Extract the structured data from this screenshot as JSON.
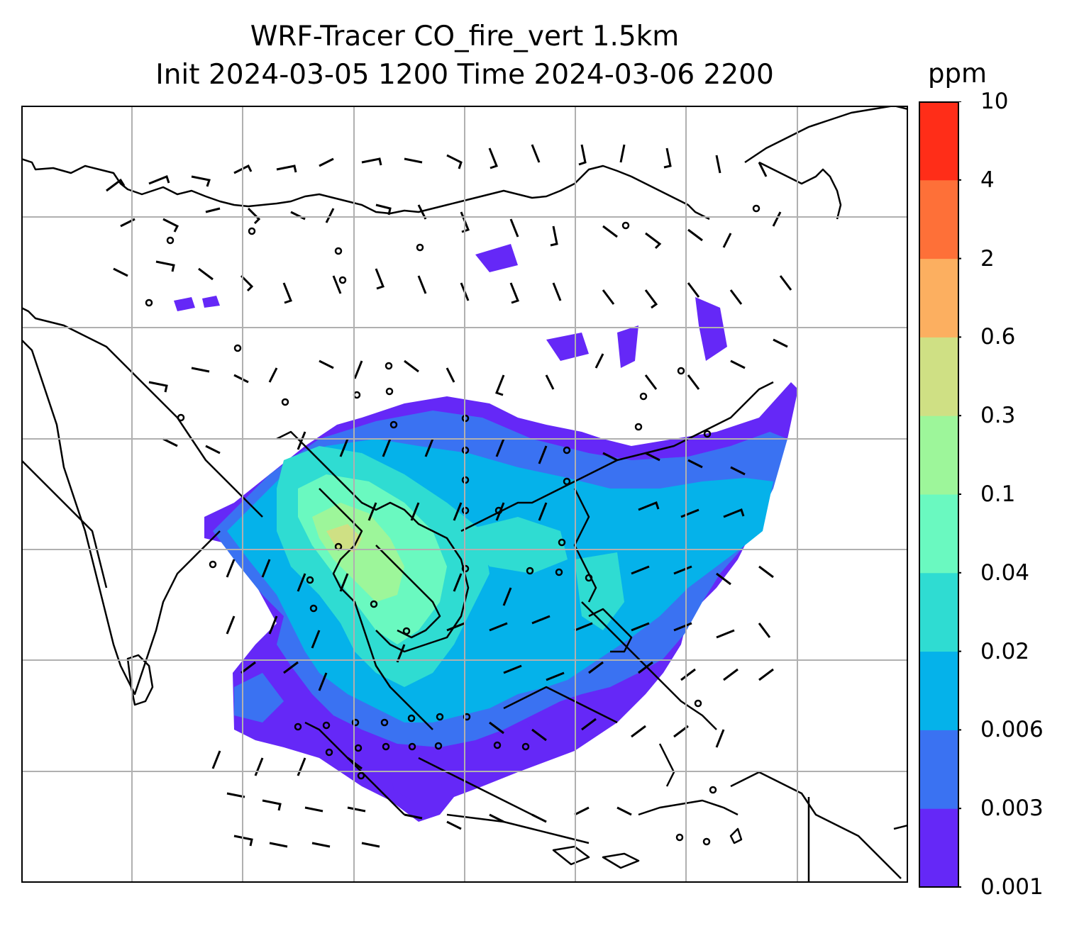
{
  "title": {
    "line1": "WRF-Tracer CO_fire_vert 1.5km",
    "line2": "Init 2024-03-05 1200 Time 2024-03-06 2200"
  },
  "colorbar": {
    "unit": "ppm",
    "levels": [
      "0.001",
      "0.003",
      "0.006",
      "0.02",
      "0.04",
      "0.1",
      "0.3",
      "0.6",
      "2",
      "4",
      "10"
    ],
    "colors": [
      "#6528f7",
      "#3a72f2",
      "#05b2ea",
      "#2fdcd2",
      "#6af9c0",
      "#9df69a",
      "#cfe084",
      "#fcaf60",
      "#fe7038",
      "#ff2d18"
    ]
  },
  "map": {
    "background": "#ffffff",
    "gridlines": true,
    "coastline_color": "#000000",
    "wind_barbs": true
  }
}
